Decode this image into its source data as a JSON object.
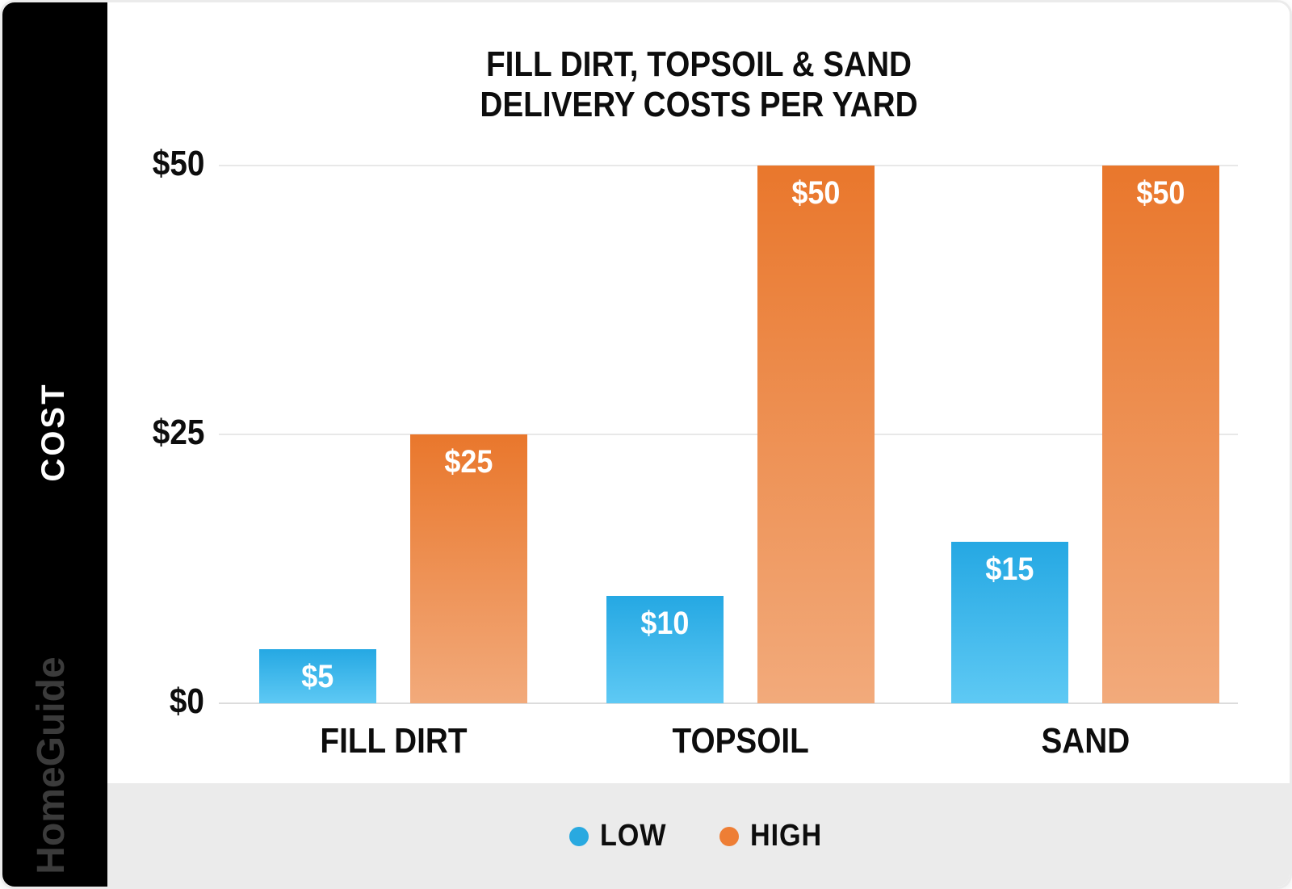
{
  "sidebar": {
    "cost_label": "COST",
    "brand": "HomeGuide"
  },
  "title": {
    "line1": "FILL DIRT, TOPSOIL & SAND",
    "line2": "DELIVERY COSTS PER YARD"
  },
  "chart_data": {
    "type": "bar",
    "title": "FILL DIRT, TOPSOIL & SAND DELIVERY COSTS PER YARD",
    "ylabel": "COST",
    "categories": [
      "FILL DIRT",
      "TOPSOIL",
      "SAND"
    ],
    "series": [
      {
        "name": "LOW",
        "values": [
          5,
          10,
          15
        ],
        "color_top": "#25a8e3",
        "color_bottom": "#5ec9f4",
        "legend_color": "#29a9e0"
      },
      {
        "name": "HIGH",
        "values": [
          25,
          50,
          50
        ],
        "color_top": "#e9772c",
        "color_bottom": "#f2aa7b",
        "legend_color": "#ee7e35"
      }
    ],
    "data_labels": [
      [
        "$5",
        "$10",
        "$15"
      ],
      [
        "$25",
        "$50",
        "$50"
      ]
    ],
    "yticks": [
      {
        "value": 0,
        "label": "$0"
      },
      {
        "value": 25,
        "label": "$25"
      },
      {
        "value": 50,
        "label": "$50"
      }
    ],
    "ylim": [
      0,
      50
    ],
    "grid": true,
    "legend_position": "bottom"
  }
}
